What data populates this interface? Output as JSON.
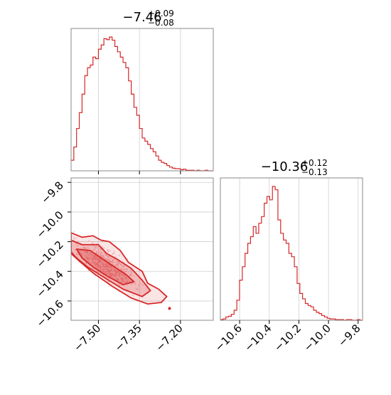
{
  "chart_data": [
    {
      "panel": "hist-param-1",
      "type": "histogram",
      "title": {
        "value": "−7.46",
        "plus": "+0.09",
        "minus": "−0.08"
      },
      "xlim": [
        -7.6,
        -7.08
      ],
      "xticks": [
        -7.5,
        -7.35,
        -7.2
      ],
      "bin_edges_start": -7.6,
      "bin_width": 0.01,
      "counts": [
        20,
        45,
        80,
        110,
        145,
        180,
        195,
        200,
        215,
        212,
        230,
        238,
        250,
        248,
        253,
        247,
        235,
        225,
        215,
        205,
        195,
        170,
        145,
        120,
        105,
        80,
        62,
        56,
        50,
        42,
        36,
        28,
        20,
        16,
        14,
        10,
        7,
        5,
        4,
        4,
        2,
        3,
        1,
        1,
        1,
        0,
        1,
        0,
        0,
        1,
        0,
        0
      ],
      "color": "#d62728",
      "grid": true
    },
    {
      "panel": "hist-param-2",
      "type": "histogram",
      "title": {
        "value": "−10.36",
        "plus": "+0.12",
        "minus": "−0.13"
      },
      "xlim": [
        -10.73,
        -9.77
      ],
      "xticks": [
        -10.6,
        -10.4,
        -10.2,
        -10.0,
        -9.8
      ],
      "xtick_labels": [
        "−10.6",
        "−10.4",
        "−10.2",
        "−10.0",
        "−9.8"
      ],
      "bin_edges_start": -10.73,
      "bin_width": 0.0185,
      "counts": [
        1,
        2,
        5,
        6,
        9,
        15,
        30,
        60,
        80,
        100,
        115,
        125,
        140,
        130,
        145,
        155,
        175,
        185,
        180,
        200,
        195,
        150,
        130,
        120,
        115,
        100,
        95,
        80,
        55,
        40,
        32,
        25,
        22,
        20,
        15,
        12,
        10,
        7,
        5,
        3,
        2,
        2,
        1,
        1,
        1,
        0,
        1,
        1,
        0,
        0,
        1,
        0
      ],
      "color": "#d62728",
      "grid": true
    },
    {
      "panel": "corner-2d",
      "type": "scatter-contour",
      "xlim": [
        -7.6,
        -7.08
      ],
      "ylim": [
        -10.73,
        -9.77
      ],
      "xticks": [
        -7.5,
        -7.35,
        -7.2
      ],
      "xtick_labels": [
        "−7.50",
        "−7.35",
        "−7.20"
      ],
      "yticks": [
        -10.6,
        -10.4,
        -10.2,
        -10.0,
        -9.8
      ],
      "ytick_labels": [
        "−10.6",
        "−10.4",
        "−10.2",
        "−10.0",
        "−9.8"
      ],
      "color": "#d62728",
      "grid": true,
      "outlier_point": {
        "x": -7.24,
        "y": -10.65
      },
      "contours": [
        {
          "level": "outer",
          "points": [
            [
              -7.6,
              -10.14
            ],
            [
              -7.56,
              -10.17
            ],
            [
              -7.52,
              -10.16
            ],
            [
              -7.49,
              -10.19
            ],
            [
              -7.46,
              -10.2
            ],
            [
              -7.42,
              -10.26
            ],
            [
              -7.39,
              -10.34
            ],
            [
              -7.34,
              -10.4
            ],
            [
              -7.32,
              -10.48
            ],
            [
              -7.28,
              -10.52
            ],
            [
              -7.25,
              -10.57
            ],
            [
              -7.27,
              -10.61
            ],
            [
              -7.32,
              -10.62
            ],
            [
              -7.38,
              -10.58
            ],
            [
              -7.45,
              -10.5
            ],
            [
              -7.52,
              -10.41
            ],
            [
              -7.57,
              -10.33
            ],
            [
              -7.6,
              -10.28
            ]
          ]
        },
        {
          "level": "middle",
          "points": [
            [
              -7.6,
              -10.19
            ],
            [
              -7.56,
              -10.22
            ],
            [
              -7.5,
              -10.22
            ],
            [
              -7.47,
              -10.28
            ],
            [
              -7.43,
              -10.32
            ],
            [
              -7.38,
              -10.38
            ],
            [
              -7.34,
              -10.46
            ],
            [
              -7.31,
              -10.53
            ],
            [
              -7.34,
              -10.57
            ],
            [
              -7.41,
              -10.52
            ],
            [
              -7.48,
              -10.44
            ],
            [
              -7.54,
              -10.37
            ],
            [
              -7.58,
              -10.31
            ],
            [
              -7.6,
              -10.27
            ]
          ]
        },
        {
          "level": "inner",
          "points": [
            [
              -7.58,
              -10.25
            ],
            [
              -7.53,
              -10.26
            ],
            [
              -7.49,
              -10.31
            ],
            [
              -7.45,
              -10.36
            ],
            [
              -7.4,
              -10.42
            ],
            [
              -7.37,
              -10.47
            ],
            [
              -7.41,
              -10.49
            ],
            [
              -7.47,
              -10.43
            ],
            [
              -7.52,
              -10.37
            ],
            [
              -7.56,
              -10.31
            ]
          ]
        }
      ]
    }
  ]
}
